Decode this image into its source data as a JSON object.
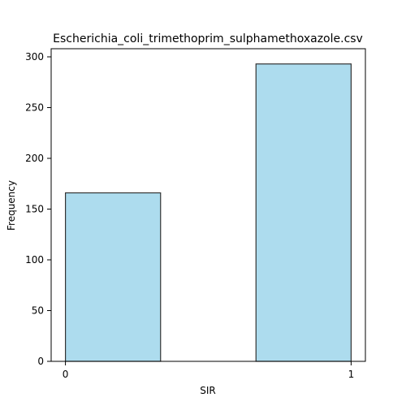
{
  "chart_data": {
    "type": "bar",
    "title": "Escherichia_coli_trimethoprim_sulphamethoxazole.csv",
    "xlabel": "SIR",
    "ylabel": "Frequency",
    "xlim": [
      -0.05,
      1.05
    ],
    "ylim": [
      0,
      308
    ],
    "x_ticks": [
      0,
      1
    ],
    "y_ticks": [
      0,
      50,
      100,
      150,
      200,
      250,
      300
    ],
    "bars": [
      {
        "x0": 0.0,
        "x1": 0.333,
        "value": 166
      },
      {
        "x0": 0.667,
        "x1": 1.0,
        "value": 293
      }
    ],
    "bar_fill": "#ADDCEE",
    "bar_edge": "#333333",
    "grid": false
  }
}
